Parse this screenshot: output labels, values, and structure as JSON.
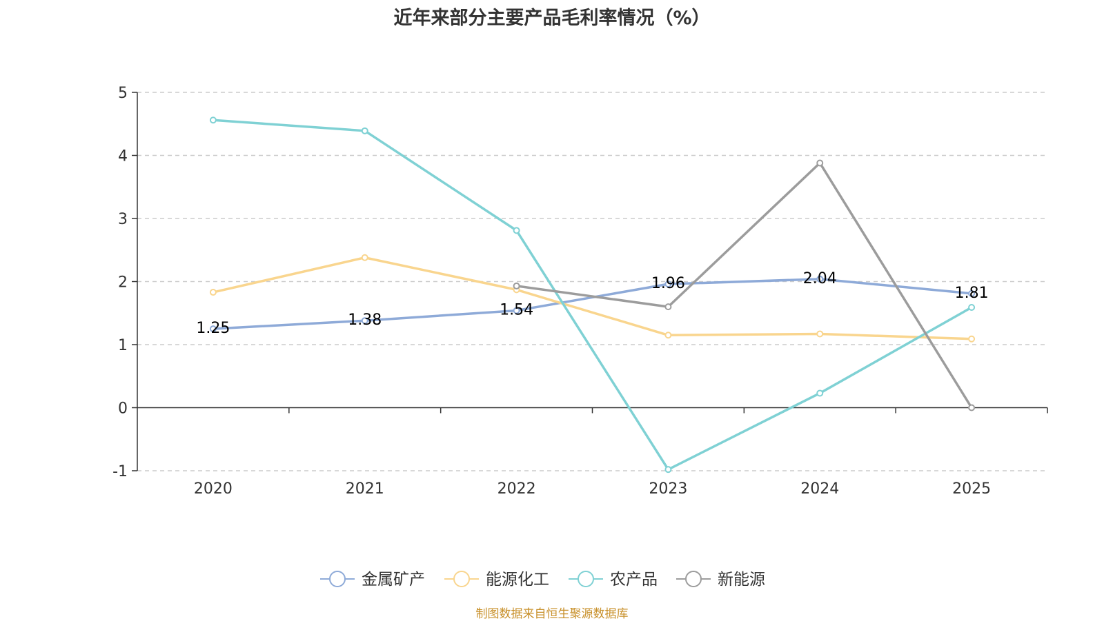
{
  "source_note": "制图数据来自恒生聚源数据库",
  "chart_data": {
    "type": "line",
    "title": "近年来部分主要产品毛利率情况（%）",
    "xlabel": "",
    "ylabel": "",
    "categories": [
      "2020",
      "2021",
      "2022",
      "2023",
      "2024",
      "2025"
    ],
    "ylim": [
      -1,
      5
    ],
    "yticks": [
      -1,
      0,
      1,
      2,
      3,
      4,
      5
    ],
    "grid": true,
    "legend_position": "bottom",
    "series": [
      {
        "name": "金属矿产",
        "color": "#8eaad8",
        "values": [
          1.25,
          1.38,
          1.54,
          1.96,
          2.04,
          1.81
        ],
        "show_labels": true
      },
      {
        "name": "能源化工",
        "color": "#f9d58e",
        "values": [
          1.83,
          2.38,
          1.87,
          1.15,
          1.17,
          1.09
        ],
        "show_labels": false
      },
      {
        "name": "农产品",
        "color": "#7fd1d4",
        "values": [
          4.56,
          4.39,
          2.81,
          -0.98,
          0.23,
          1.59
        ],
        "show_labels": false
      },
      {
        "name": "新能源",
        "color": "#9c9c9c",
        "values": [
          null,
          null,
          1.93,
          1.6,
          3.88,
          0.0
        ],
        "show_labels": false
      }
    ]
  }
}
